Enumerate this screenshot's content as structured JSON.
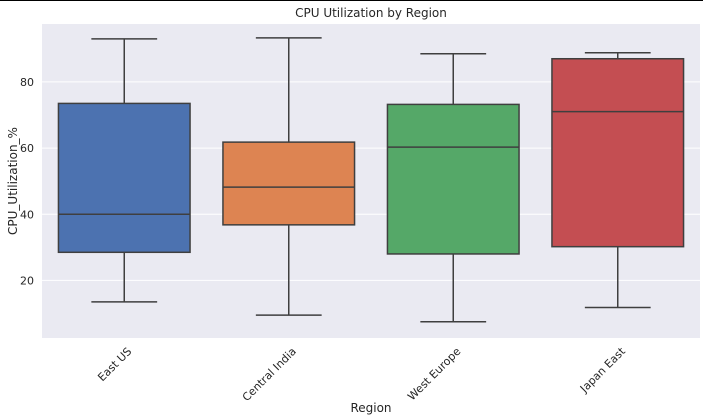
{
  "chart_data": {
    "type": "box",
    "title": "CPU Utilization by Region",
    "xlabel": "Region",
    "ylabel": "CPU_Utilization_%",
    "categories": [
      "East US",
      "Central India",
      "West Europe",
      "Japan East"
    ],
    "yticks": [
      20,
      40,
      60,
      80
    ],
    "ylim": [
      2.6,
      97.5
    ],
    "grid": "y",
    "xtick_rotation": 45,
    "boxes": [
      {
        "category": "East US",
        "min": 13.5,
        "q1": 28.5,
        "median": 40.0,
        "q3": 73.5,
        "max": 93.0,
        "color": "#4C72B0"
      },
      {
        "category": "Central India",
        "min": 9.5,
        "q1": 36.8,
        "median": 48.2,
        "q3": 61.8,
        "max": 93.3,
        "color": "#DD8452"
      },
      {
        "category": "West Europe",
        "min": 7.5,
        "q1": 28.0,
        "median": 60.3,
        "q3": 73.2,
        "max": 88.5,
        "color": "#55A868"
      },
      {
        "category": "Japan East",
        "min": 11.8,
        "q1": 30.2,
        "median": 71.0,
        "q3": 87.0,
        "max": 88.8,
        "color": "#C44E52"
      }
    ],
    "colors": {
      "plot_bg": "#EAEAF2",
      "grid": "#FFFFFF",
      "line": "#3F3F3F"
    }
  }
}
